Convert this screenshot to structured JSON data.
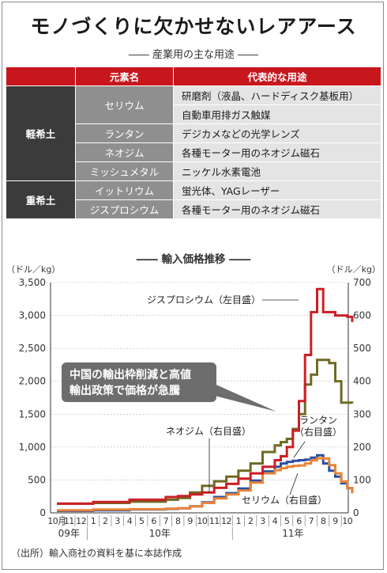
{
  "title": "モノづくりに欠かせないレアアース",
  "subtitle": "―― 産業用の主な用途 ――",
  "table": {
    "headers": [
      "元素名",
      "代表的な用途"
    ],
    "groups": [
      {
        "category": "軽希土",
        "rows": [
          {
            "element": "セリウム",
            "uses": [
              "研磨剤（液晶、ハードディスク基板用）",
              "自動車用排ガス触媒"
            ]
          },
          {
            "element": "ランタン",
            "uses": [
              "デジカメなどの光学レンズ"
            ]
          },
          {
            "element": "ネオジム",
            "uses": [
              "各種モーター用のネオジム磁石"
            ]
          },
          {
            "element": "ミッシュメタル",
            "uses": [
              "ニッケル水素電池"
            ]
          }
        ]
      },
      {
        "category": "重希土",
        "rows": [
          {
            "element": "イットリウム",
            "uses": [
              "蛍光体、YAGレーザー"
            ]
          },
          {
            "element": "ジスプロシウム",
            "uses": [
              "各種モーター用のネオジム磁石"
            ]
          }
        ]
      }
    ]
  },
  "source_note": "（出所）輸入商社の資料を基に本誌作成",
  "chart_data": {
    "type": "line",
    "title": "―― 輸入価格推移 ――",
    "left_unit": "（ドル／kg）",
    "right_unit": "（ドル／kg）",
    "left_ylim": [
      0,
      3500
    ],
    "right_ylim": [
      0,
      700
    ],
    "left_ticks": [
      "0",
      "500",
      "1,000",
      "1,500",
      "2,000",
      "2,500",
      "3,000",
      "3,500"
    ],
    "right_ticks": [
      "0",
      "100",
      "200",
      "300",
      "400",
      "500",
      "600",
      "700"
    ],
    "grid": true,
    "x_months": [
      "10月",
      "11",
      "12",
      "1",
      "2",
      "3",
      "4",
      "5",
      "6",
      "7",
      "8",
      "9",
      "10",
      "11",
      "12",
      "1",
      "2",
      "3",
      "4",
      "5",
      "6",
      "7",
      "8",
      "9",
      "10"
    ],
    "x_years": [
      "09年",
      "10年",
      "11年"
    ],
    "annotation": "中国の輸出枠削減と高値\n輸出政策で価格が急騰",
    "series": [
      {
        "name": "ジスプロシウム（左目盛）",
        "axis": "left",
        "color": "#cc1f25",
        "x": [
          0,
          3,
          6,
          9,
          10,
          11,
          12,
          13,
          14,
          15,
          16,
          17,
          18,
          18.5,
          19,
          19.5,
          20,
          20.5,
          21,
          21.5,
          22,
          23,
          24,
          24.4
        ],
        "y": [
          140,
          165,
          200,
          240,
          255,
          280,
          310,
          380,
          440,
          520,
          600,
          700,
          800,
          860,
          1000,
          1250,
          1700,
          2400,
          3050,
          3400,
          3050,
          3000,
          2980,
          2900
        ]
      },
      {
        "name": "ネオジム（右目盛）",
        "axis": "right",
        "color": "#6e6a24",
        "x": [
          0,
          3,
          6,
          9,
          10,
          11,
          12,
          13,
          14,
          15,
          16,
          17,
          18,
          18.5,
          19,
          19.5,
          20,
          20.5,
          21,
          21.5,
          22,
          22.5,
          23,
          23.5,
          24,
          24.4
        ],
        "y": [
          28,
          30,
          34,
          40,
          45,
          62,
          82,
          96,
          110,
          128,
          150,
          185,
          205,
          215,
          225,
          255,
          300,
          390,
          420,
          465,
          465,
          455,
          400,
          335,
          335,
          333
        ]
      },
      {
        "name": "ランタン（右目盛）",
        "axis": "right",
        "color": "#e8843a",
        "x": [
          0,
          3,
          6,
          9,
          10,
          11,
          12,
          13,
          14,
          15,
          16,
          17,
          18,
          18.5,
          19,
          19.5,
          20,
          20.5,
          21,
          21.5,
          22,
          22.5,
          23,
          23.5,
          24,
          24.4
        ],
        "y": [
          8,
          10,
          11,
          13,
          14,
          20,
          30,
          44,
          56,
          68,
          92,
          120,
          130,
          136,
          140,
          143,
          144,
          150,
          160,
          166,
          165,
          145,
          120,
          95,
          75,
          60
        ]
      },
      {
        "name": "セリウム（右目盛）",
        "axis": "right",
        "color": "#2b4fa1",
        "x": [
          0,
          3,
          6,
          9,
          10,
          11,
          12,
          13,
          14,
          15,
          16,
          17,
          18,
          18.5,
          19,
          19.5,
          20,
          20.5,
          21,
          21.5,
          22,
          22.5,
          23,
          23.5,
          24,
          24.4
        ],
        "y": [
          6,
          8,
          10,
          12,
          14,
          20,
          32,
          48,
          60,
          74,
          98,
          126,
          140,
          150,
          155,
          158,
          160,
          162,
          168,
          175,
          150,
          128,
          110,
          90,
          75,
          60
        ]
      }
    ],
    "labels": [
      {
        "series": "ジスプロシウム（左目盛）",
        "text": "ジスプロシウム（左目盛）"
      },
      {
        "series": "ネオジム（右目盛）",
        "text": "ネオジム（右目盛）"
      },
      {
        "series": "ランタン（右目盛）",
        "text": "ランタン\n（右目盛）"
      },
      {
        "series": "セリウム（右目盛）",
        "text": "セリウム（右目盛）"
      }
    ]
  }
}
